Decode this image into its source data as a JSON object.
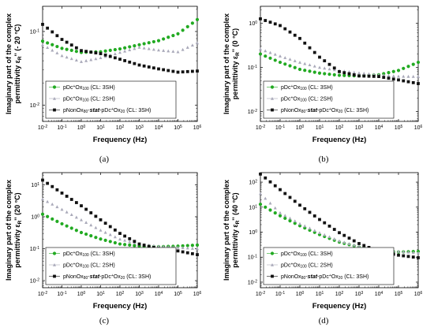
{
  "colors": {
    "green": "#22aa22",
    "grey": "#a9a9b9",
    "black": "#111111"
  },
  "legend": [
    {
      "parts": [
        {
          "t": "pDc"
        },
        {
          "t": "+",
          "s": "sup"
        },
        {
          "t": "Ox"
        },
        {
          "t": "100",
          "s": "sub"
        },
        {
          "t": " (CL: 3SH)"
        }
      ]
    },
    {
      "parts": [
        {
          "t": "pDc"
        },
        {
          "t": "+",
          "s": "sup"
        },
        {
          "t": "Ox"
        },
        {
          "t": "100",
          "s": "sub"
        },
        {
          "t": " (CL: 2SH)"
        }
      ]
    },
    {
      "parts": [
        {
          "t": "pNonOx"
        },
        {
          "t": "80",
          "s": "sub"
        },
        {
          "t": "-"
        },
        {
          "t": "stat",
          "b": 1
        },
        {
          "t": "-pDc"
        },
        {
          "t": "+",
          "s": "sup"
        },
        {
          "t": "Ox"
        },
        {
          "t": "20",
          "s": "sub"
        },
        {
          "t": " (CL: 3SH)"
        }
      ]
    }
  ],
  "chart_data": [
    {
      "panel": "(a)",
      "type": "scatter",
      "xscale": "log",
      "yscale": "log",
      "xlabel": "Frequency (Hz)",
      "ylabel_line1": "Imaginary part of the complex",
      "ylabel_line2": "permittivity ε″ R\" (- 20 °C)",
      "ylabel_prefix": "permittivity ε",
      "ylabel_subscript": "R",
      "ylabel_suffix": "'' (- 20 °C)",
      "xlim": [
        0.01,
        1000000
      ],
      "ylim": [
        0.006,
        0.22
      ],
      "xticks": [
        "10-2",
        "10-1",
        "100",
        "101",
        "102",
        "103",
        "104",
        "105",
        "106"
      ],
      "yticks": [
        {
          "v": 0.01,
          "exp": "-2"
        },
        {
          "v": 0.1,
          "exp": "-1"
        }
      ],
      "series": [
        {
          "name": "pDc+Ox100 (CL: 3SH)",
          "color": "green",
          "marker": "dot",
          "points": [
            [
              0.01,
              0.074
            ],
            [
              0.1,
              0.059
            ],
            [
              1,
              0.052
            ],
            [
              10,
              0.053
            ],
            [
              100,
              0.058
            ],
            [
              1000,
              0.066
            ],
            [
              10000,
              0.075
            ],
            [
              100000,
              0.093
            ],
            [
              1000000,
              0.145
            ]
          ]
        },
        {
          "name": "pDc+Ox100 (CL: 2SH)",
          "color": "grey",
          "marker": "tri",
          "points": [
            [
              0.01,
              0.066
            ],
            [
              0.1,
              0.047
            ],
            [
              1,
              0.039
            ],
            [
              10,
              0.044
            ],
            [
              100,
              0.052
            ],
            [
              1000,
              0.061
            ],
            [
              10000,
              0.056
            ],
            [
              100000,
              0.053
            ],
            [
              1000000,
              0.07
            ]
          ]
        },
        {
          "name": "pNonOx80-stat-pDc+Ox20 (CL: 3SH)",
          "color": "black",
          "marker": "square",
          "points": [
            [
              0.01,
              0.125
            ],
            [
              0.1,
              0.078
            ],
            [
              1,
              0.055
            ],
            [
              10,
              0.05
            ],
            [
              100,
              0.042
            ],
            [
              1000,
              0.035
            ],
            [
              10000,
              0.031
            ],
            [
              100000,
              0.028
            ],
            [
              1000000,
              0.029
            ]
          ]
        }
      ]
    },
    {
      "panel": "(b)",
      "type": "scatter",
      "xscale": "log",
      "yscale": "log",
      "xlabel": "Frequency (Hz)",
      "ylabel_line1": "Imaginary part of the complex",
      "ylabel_prefix": "permittivity ε",
      "ylabel_subscript": "R",
      "ylabel_suffix": "'' (0 °C)",
      "xlim": [
        0.01,
        1000000
      ],
      "ylim": [
        0.006,
        2.4
      ],
      "xticks": [
        "10-2",
        "10-1",
        "100",
        "101",
        "102",
        "103",
        "104",
        "105",
        "106"
      ],
      "yticks": [
        {
          "v": 0.01,
          "exp": "-2"
        },
        {
          "v": 0.1,
          "exp": "-1"
        },
        {
          "v": 1,
          "exp": "0"
        }
      ],
      "series": [
        {
          "name": "pDc+Ox100 (CL: 3SH)",
          "color": "green",
          "marker": "dot",
          "points": [
            [
              0.01,
              0.2
            ],
            [
              0.1,
              0.13
            ],
            [
              1,
              0.09
            ],
            [
              10,
              0.074
            ],
            [
              100,
              0.066
            ],
            [
              1000,
              0.064
            ],
            [
              10000,
              0.068
            ],
            [
              100000,
              0.085
            ],
            [
              1000000,
              0.13
            ]
          ]
        },
        {
          "name": "pDc+Ox100 (CL: 2SH)",
          "color": "grey",
          "marker": "tri",
          "points": [
            [
              0.01,
              0.26
            ],
            [
              0.1,
              0.18
            ],
            [
              1,
              0.13
            ],
            [
              10,
              0.1
            ],
            [
              100,
              0.085
            ],
            [
              1000,
              0.075
            ],
            [
              10000,
              0.068
            ],
            [
              100000,
              0.063
            ],
            [
              1000000,
              0.062
            ]
          ]
        },
        {
          "name": "pNonOx80-stat-pDc+Ox20 (CL: 3SH)",
          "color": "black",
          "marker": "square",
          "points": [
            [
              0.01,
              1.25
            ],
            [
              0.1,
              0.88
            ],
            [
              1,
              0.45
            ],
            [
              10,
              0.17
            ],
            [
              100,
              0.08
            ],
            [
              1000,
              0.064
            ],
            [
              10000,
              0.062
            ],
            [
              100000,
              0.052
            ],
            [
              1000000,
              0.043
            ]
          ]
        }
      ]
    },
    {
      "panel": "(c)",
      "type": "scatter",
      "xscale": "log",
      "yscale": "log",
      "xlabel": "Frequency (Hz)",
      "ylabel_line1": "Imaginary part of the complex",
      "ylabel_prefix": "permittivity ε",
      "ylabel_subscript": "R",
      "ylabel_suffix": "'' (20 °C)",
      "xlim": [
        0.01,
        1000000
      ],
      "ylim": [
        0.006,
        24
      ],
      "xticks": [
        "10-2",
        "10-1",
        "100",
        "101",
        "102",
        "103",
        "104",
        "105",
        "106"
      ],
      "yticks": [
        {
          "v": 0.01,
          "exp": "-2"
        },
        {
          "v": 0.1,
          "exp": "-1"
        },
        {
          "v": 1,
          "exp": "0"
        },
        {
          "v": 10,
          "exp": "1"
        }
      ],
      "series": [
        {
          "name": "pDc+Ox100 (CL: 3SH)",
          "color": "green",
          "marker": "dot",
          "points": [
            [
              0.01,
              1.2
            ],
            [
              0.1,
              0.6
            ],
            [
              1,
              0.32
            ],
            [
              10,
              0.2
            ],
            [
              100,
              0.14
            ],
            [
              1000,
              0.12
            ],
            [
              10000,
              0.115
            ],
            [
              100000,
              0.12
            ],
            [
              1000000,
              0.13
            ]
          ]
        },
        {
          "name": "pDc+Ox100 (CL: 2SH)",
          "color": "grey",
          "marker": "tri",
          "points": [
            [
              0.01,
              3.6
            ],
            [
              0.1,
              1.7
            ],
            [
              1,
              0.8
            ],
            [
              10,
              0.38
            ],
            [
              100,
              0.2
            ],
            [
              1000,
              0.14
            ],
            [
              10000,
              0.12
            ],
            [
              100000,
              0.11
            ],
            [
              1000000,
              0.1
            ]
          ]
        },
        {
          "name": "pNonOx80-stat-pDc+Ox20 (CL: 3SH)",
          "color": "black",
          "marker": "square",
          "points": [
            [
              0.01,
              14
            ],
            [
              0.1,
              5.5
            ],
            [
              1,
              2.2
            ],
            [
              10,
              0.8
            ],
            [
              100,
              0.3
            ],
            [
              1000,
              0.14
            ],
            [
              10000,
              0.1
            ],
            [
              100000,
              0.085
            ],
            [
              1000000,
              0.065
            ]
          ]
        }
      ]
    },
    {
      "panel": "(d)",
      "type": "scatter",
      "xscale": "log",
      "yscale": "log",
      "xlabel": "Frequency (Hz)",
      "ylabel_line1": "Imaginary part of the complex",
      "ylabel_prefix": "permittivity ε",
      "ylabel_subscript": "R",
      "ylabel_suffix": "'' (40 °C)",
      "xlim": [
        0.01,
        1000000
      ],
      "ylim": [
        0.006,
        240
      ],
      "xticks": [
        "10-2",
        "10-1",
        "100",
        "101",
        "102",
        "103",
        "104",
        "105",
        "106"
      ],
      "yticks": [
        {
          "v": 0.01,
          "exp": "-2"
        },
        {
          "v": 0.1,
          "exp": "-1"
        },
        {
          "v": 1,
          "exp": "0"
        },
        {
          "v": 10,
          "exp": "1"
        },
        {
          "v": 100,
          "exp": "2"
        }
      ],
      "series": [
        {
          "name": "pDc+Ox100 (CL: 3SH)",
          "color": "green",
          "marker": "dot",
          "points": [
            [
              0.01,
              13
            ],
            [
              0.1,
              4.5
            ],
            [
              1,
              1.8
            ],
            [
              10,
              0.8
            ],
            [
              100,
              0.4
            ],
            [
              1000,
              0.25
            ],
            [
              10000,
              0.18
            ],
            [
              100000,
              0.16
            ],
            [
              1000000,
              0.17
            ]
          ]
        },
        {
          "name": "pDc+Ox100 (CL: 2SH)",
          "color": "grey",
          "marker": "tri",
          "points": [
            [
              0.01,
              35
            ],
            [
              0.1,
              6
            ],
            [
              1,
              2.2
            ],
            [
              10,
              0.95
            ],
            [
              100,
              0.45
            ],
            [
              1000,
              0.27
            ],
            [
              10000,
              0.2
            ],
            [
              100000,
              0.17
            ],
            [
              1000000,
              0.15
            ]
          ]
        },
        {
          "name": "pNonOx80-stat-pDc+Ox20 (CL: 3SH)",
          "color": "black",
          "marker": "square",
          "points": [
            [
              0.01,
              210
            ],
            [
              0.1,
              50
            ],
            [
              1,
              12
            ],
            [
              10,
              3.2
            ],
            [
              100,
              0.95
            ],
            [
              1000,
              0.35
            ],
            [
              10000,
              0.17
            ],
            [
              100000,
              0.12
            ],
            [
              1000000,
              0.095
            ]
          ]
        }
      ]
    }
  ]
}
